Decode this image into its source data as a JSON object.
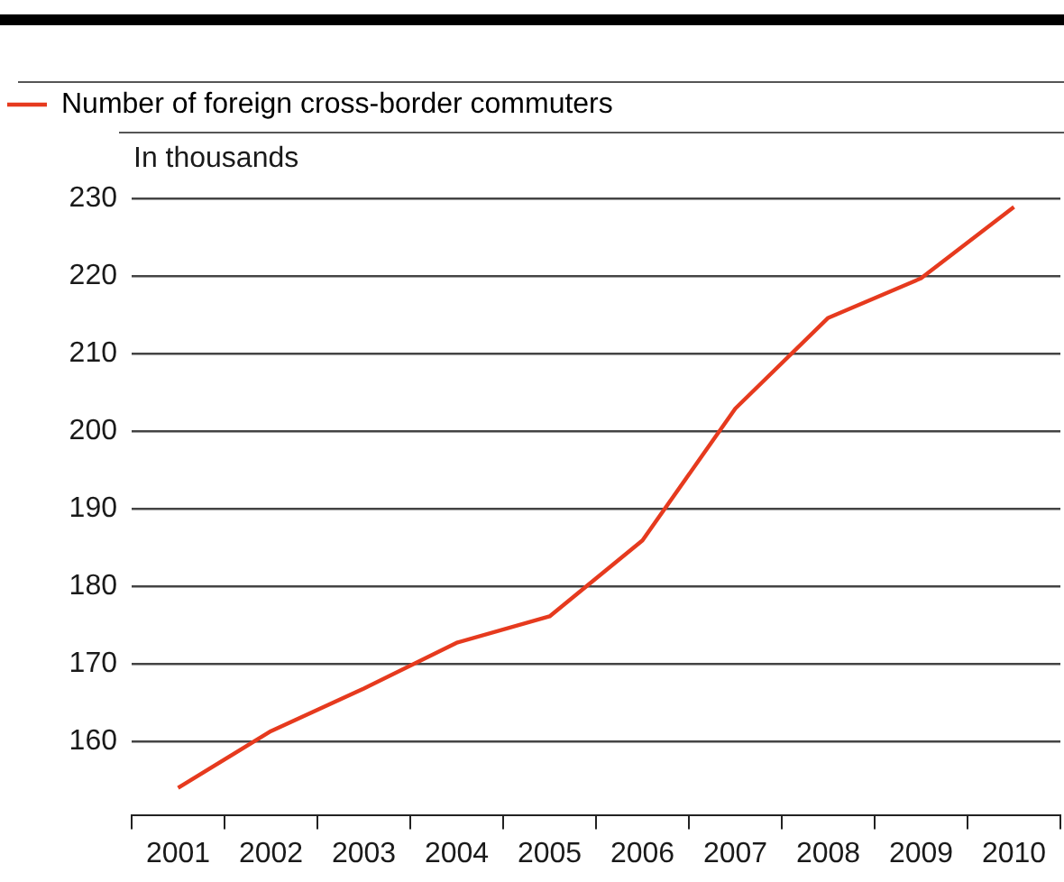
{
  "chart_data": {
    "type": "line",
    "ylabel": "In thousands",
    "categories": [
      "2001",
      "2002",
      "2003",
      "2004",
      "2005",
      "2006",
      "2007",
      "2008",
      "2009",
      "2010"
    ],
    "series": [
      {
        "name": "Number of foreign cross-border commuters",
        "color": "#e63a1e",
        "values": [
          154.0,
          161.3,
          166.8,
          172.7,
          176.1,
          185.9,
          202.9,
          214.6,
          219.7,
          228.9
        ]
      }
    ],
    "ylim": [
      150.5,
      230
    ],
    "yticks": [
      160,
      170,
      180,
      190,
      200,
      210,
      220,
      230
    ],
    "grid": "y",
    "legend": "top left",
    "marker": "none",
    "line_style": "solid"
  }
}
